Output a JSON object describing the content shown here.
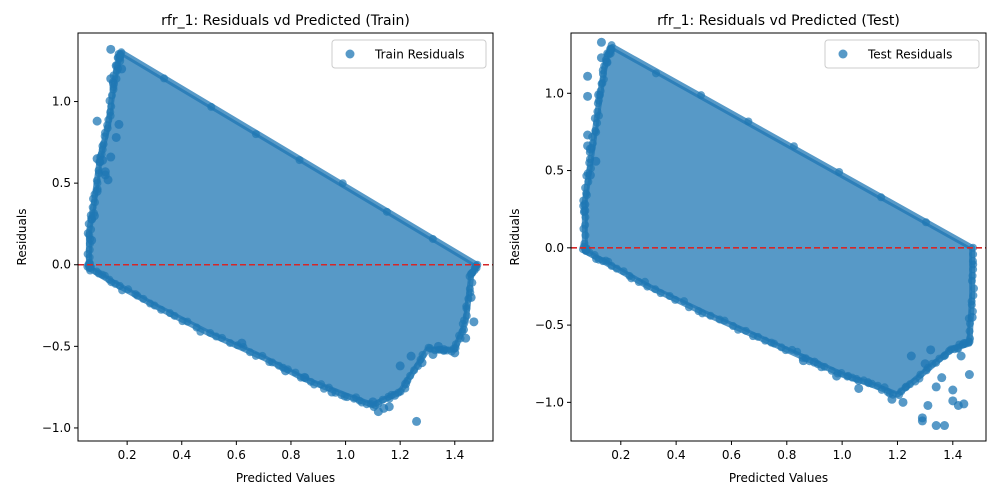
{
  "chart_data": [
    {
      "type": "scatter",
      "title": "rfr_1: Residuals vd Predicted (Train)",
      "xlabel": "Predicted Values",
      "ylabel": "Residuals",
      "xlim": [
        0.02,
        1.54
      ],
      "ylim": [
        -1.08,
        1.42
      ],
      "xticks": [
        0.2,
        0.4,
        0.6,
        0.8,
        1.0,
        1.2,
        1.4
      ],
      "xtick_labels": [
        "0.2",
        "0.4",
        "0.6",
        "0.8",
        "1.0",
        "1.2",
        "1.4"
      ],
      "yticks": [
        -1.0,
        -0.5,
        0.0,
        0.5,
        1.0
      ],
      "ytick_labels": [
        "−1.0",
        "−0.5",
        "0.0",
        "0.5",
        "1.0"
      ],
      "reference_line": {
        "y": 0.0,
        "color": "#d62728",
        "style": "dashed"
      },
      "grid": false,
      "legend": {
        "position": "top-right",
        "entries": [
          "Train Residuals"
        ]
      },
      "series": [
        {
          "name": "Train Residuals",
          "color": "#1f77b4",
          "main_band_polygon": [
            [
              0.06,
              0.0
            ],
            [
              0.06,
              0.2
            ],
            [
              0.08,
              0.4
            ],
            [
              0.1,
              0.65
            ],
            [
              0.13,
              0.85
            ],
            [
              0.15,
              1.1
            ],
            [
              0.17,
              1.27
            ],
            [
              0.18,
              1.3
            ],
            [
              1.48,
              0.0
            ],
            [
              1.46,
              -0.07
            ],
            [
              1.44,
              -0.35
            ],
            [
              1.4,
              -0.52
            ],
            [
              1.3,
              -0.52
            ],
            [
              1.2,
              -0.78
            ],
            [
              1.1,
              -0.86
            ],
            [
              1.0,
              -0.8
            ],
            [
              0.85,
              -0.7
            ],
            [
              0.7,
              -0.57
            ],
            [
              0.5,
              -0.42
            ],
            [
              0.3,
              -0.25
            ],
            [
              0.15,
              -0.11
            ],
            [
              0.06,
              -0.02
            ]
          ],
          "outliers": [
            [
              0.14,
              1.32
            ],
            [
              0.09,
              0.88
            ],
            [
              0.09,
              0.65
            ],
            [
              0.1,
              0.63
            ],
            [
              0.11,
              0.64
            ],
            [
              0.12,
              0.57
            ],
            [
              0.12,
              0.55
            ],
            [
              0.13,
              0.52
            ],
            [
              0.14,
              0.66
            ],
            [
              0.14,
              1.14
            ],
            [
              0.15,
              1.11
            ],
            [
              0.16,
              1.22
            ],
            [
              0.18,
              1.2
            ],
            [
              0.07,
              0.28
            ],
            [
              0.08,
              0.3
            ],
            [
              0.07,
              0.15
            ],
            [
              0.09,
              0.45
            ],
            [
              0.16,
              0.78
            ],
            [
              0.17,
              0.86
            ],
            [
              1.26,
              -0.96
            ],
            [
              1.12,
              -0.9
            ],
            [
              1.14,
              -0.88
            ],
            [
              1.16,
              -0.87
            ],
            [
              1.24,
              -0.56
            ],
            [
              1.22,
              -0.73
            ],
            [
              1.18,
              -0.8
            ],
            [
              1.2,
              -0.62
            ],
            [
              1.32,
              -0.55
            ],
            [
              1.36,
              -0.52
            ],
            [
              1.4,
              -0.54
            ],
            [
              1.44,
              -0.45
            ],
            [
              1.47,
              -0.35
            ],
            [
              1.46,
              -0.2
            ],
            [
              0.85,
              -0.69
            ],
            [
              0.78,
              -0.65
            ],
            [
              0.62,
              -0.48
            ],
            [
              1.1,
              -0.84
            ],
            [
              1.28,
              -0.6
            ],
            [
              1.34,
              -0.5
            ],
            [
              0.95,
              -0.78
            ]
          ]
        }
      ]
    },
    {
      "type": "scatter",
      "title": "rfr_1: Residuals vd Predicted (Test)",
      "xlabel": "Predicted Values",
      "ylabel": "Residuals",
      "xlim": [
        0.02,
        1.52
      ],
      "ylim": [
        -1.25,
        1.39
      ],
      "xticks": [
        0.2,
        0.4,
        0.6,
        0.8,
        1.0,
        1.2,
        1.4
      ],
      "xtick_labels": [
        "0.2",
        "0.4",
        "0.6",
        "0.8",
        "1.0",
        "1.2",
        "1.4"
      ],
      "yticks": [
        -1.0,
        -0.5,
        0.0,
        0.5,
        1.0
      ],
      "ytick_labels": [
        "−1.0",
        "−0.5",
        "0.0",
        "0.5",
        "1.0"
      ],
      "reference_line": {
        "y": 0.0,
        "color": "#d62728",
        "style": "dashed"
      },
      "grid": false,
      "legend": {
        "position": "top-right",
        "entries": [
          "Test Residuals"
        ]
      },
      "series": [
        {
          "name": "Test Residuals",
          "color": "#1f77b4",
          "main_band_polygon": [
            [
              0.07,
              0.0
            ],
            [
              0.07,
              0.3
            ],
            [
              0.09,
              0.55
            ],
            [
              0.11,
              0.8
            ],
            [
              0.13,
              1.05
            ],
            [
              0.15,
              1.25
            ],
            [
              0.17,
              1.3
            ],
            [
              1.47,
              0.0
            ],
            [
              1.47,
              -0.3
            ],
            [
              1.46,
              -0.62
            ],
            [
              1.4,
              -0.65
            ],
            [
              1.3,
              -0.8
            ],
            [
              1.2,
              -0.95
            ],
            [
              1.1,
              -0.88
            ],
            [
              1.0,
              -0.82
            ],
            [
              0.85,
              -0.7
            ],
            [
              0.7,
              -0.58
            ],
            [
              0.5,
              -0.42
            ],
            [
              0.3,
              -0.25
            ],
            [
              0.15,
              -0.1
            ],
            [
              0.07,
              -0.02
            ]
          ],
          "outliers": [
            [
              0.13,
              1.33
            ],
            [
              0.08,
              1.11
            ],
            [
              0.08,
              0.98
            ],
            [
              0.08,
              0.73
            ],
            [
              0.08,
              0.66
            ],
            [
              0.09,
              0.64
            ],
            [
              0.11,
              0.56
            ],
            [
              0.07,
              0.28
            ],
            [
              0.07,
              0.24
            ],
            [
              0.09,
              0.47
            ],
            [
              0.13,
              1.23
            ],
            [
              0.15,
              1.2
            ],
            [
              0.12,
              0.99
            ],
            [
              1.34,
              -1.15
            ],
            [
              1.37,
              -1.15
            ],
            [
              1.29,
              -1.1
            ],
            [
              1.29,
              -1.12
            ],
            [
              1.31,
              -1.02
            ],
            [
              1.34,
              -0.9
            ],
            [
              1.4,
              -0.92
            ],
            [
              1.42,
              -1.02
            ],
            [
              1.44,
              -1.01
            ],
            [
              1.46,
              -0.82
            ],
            [
              1.4,
              -0.99
            ],
            [
              1.36,
              -0.84
            ],
            [
              1.3,
              -0.75
            ],
            [
              1.22,
              -1.0
            ],
            [
              1.18,
              -0.98
            ],
            [
              1.06,
              -0.91
            ],
            [
              0.98,
              -0.83
            ],
            [
              0.9,
              -0.74
            ],
            [
              0.86,
              -0.73
            ],
            [
              1.25,
              -0.7
            ],
            [
              1.32,
              -0.66
            ],
            [
              1.44,
              -0.62
            ],
            [
              1.47,
              -0.45
            ],
            [
              1.43,
              -0.7
            ]
          ]
        }
      ]
    }
  ]
}
